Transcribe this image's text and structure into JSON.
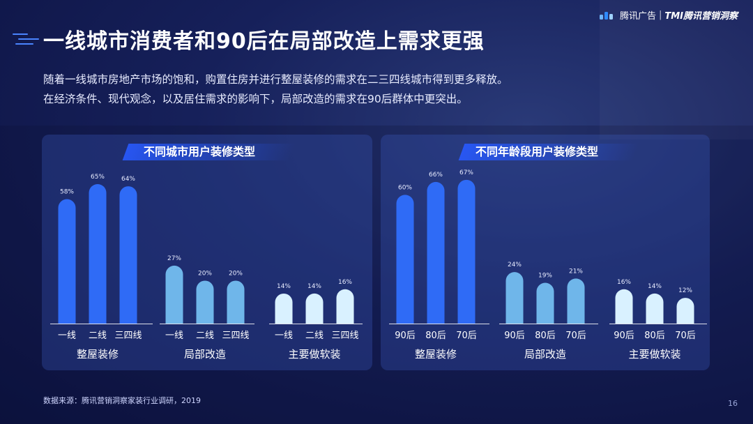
{
  "header": {
    "title": "一线城市消费者和90后在局部改造上需求更强",
    "logo_brand": "腾讯广告",
    "logo_sep": "|",
    "logo_product": "TMI腾讯营销洞察"
  },
  "description": {
    "line1": "随着一线城市房地产市场的饱和，购置住房并进行整屋装修的需求在二三四线城市得到更多释放。",
    "line2": "在经济条件、现代观念，以及居住需求的影响下，局部改造的需求在90后群体中更突出。"
  },
  "colors": {
    "dark_blue": "#2f6bf6",
    "mid_blue": "#6fb6ea",
    "light_blue": "#d9f1ff"
  },
  "chart_data": [
    {
      "type": "bar",
      "title": "不同城市用户装修类型",
      "groups": [
        {
          "name": "整屋装修",
          "categories": [
            "一线",
            "二线",
            "三四线"
          ],
          "values": [
            58,
            65,
            64
          ],
          "labels": [
            "58%",
            "65%",
            "64%"
          ]
        },
        {
          "name": "局部改造",
          "categories": [
            "一线",
            "二线",
            "三四线"
          ],
          "values": [
            27,
            20,
            20
          ],
          "labels": [
            "27%",
            "20%",
            "20%"
          ]
        },
        {
          "name": "主要做软装",
          "categories": [
            "一线",
            "二线",
            "三四线"
          ],
          "values": [
            14,
            14,
            16
          ],
          "labels": [
            "14%",
            "14%",
            "16%"
          ]
        }
      ],
      "ylim": [
        0,
        70
      ]
    },
    {
      "type": "bar",
      "title": "不同年龄段用户装修类型",
      "groups": [
        {
          "name": "整屋装修",
          "categories": [
            "90后",
            "80后",
            "70后"
          ],
          "values": [
            60,
            66,
            67
          ],
          "labels": [
            "60%",
            "66%",
            "67%"
          ]
        },
        {
          "name": "局部改造",
          "categories": [
            "90后",
            "80后",
            "70后"
          ],
          "values": [
            24,
            19,
            21
          ],
          "labels": [
            "24%",
            "19%",
            "21%"
          ]
        },
        {
          "name": "主要做软装",
          "categories": [
            "90后",
            "80后",
            "70后"
          ],
          "values": [
            16,
            14,
            12
          ],
          "labels": [
            "16%",
            "14%",
            "12%"
          ]
        }
      ],
      "ylim": [
        0,
        70
      ]
    }
  ],
  "footer": {
    "source": "数据来源：腾讯营销洞察家装行业调研，2019",
    "page_number": "16"
  }
}
